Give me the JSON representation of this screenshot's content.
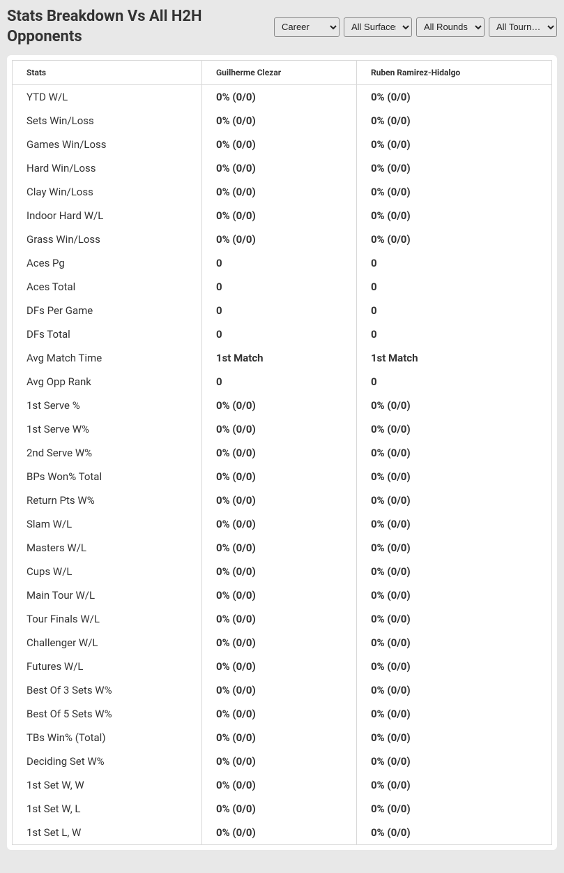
{
  "title": "Stats Breakdown Vs All H2H Opponents",
  "filters": {
    "career": "Career",
    "surfaces": "All Surfaces",
    "rounds": "All Rounds",
    "tourn": "All Tourn…"
  },
  "table": {
    "headers": {
      "stats": "Stats",
      "player1": "Guilherme Clezar",
      "player2": "Ruben Ramirez-Hidalgo"
    },
    "rows": [
      {
        "stat": "YTD W/L",
        "p1": "0% (0/0)",
        "p2": "0% (0/0)"
      },
      {
        "stat": "Sets Win/Loss",
        "p1": "0% (0/0)",
        "p2": "0% (0/0)"
      },
      {
        "stat": "Games Win/Loss",
        "p1": "0% (0/0)",
        "p2": "0% (0/0)"
      },
      {
        "stat": "Hard Win/Loss",
        "p1": "0% (0/0)",
        "p2": "0% (0/0)"
      },
      {
        "stat": "Clay Win/Loss",
        "p1": "0% (0/0)",
        "p2": "0% (0/0)"
      },
      {
        "stat": "Indoor Hard W/L",
        "p1": "0% (0/0)",
        "p2": "0% (0/0)"
      },
      {
        "stat": "Grass Win/Loss",
        "p1": "0% (0/0)",
        "p2": "0% (0/0)"
      },
      {
        "stat": "Aces Pg",
        "p1": "0",
        "p2": "0"
      },
      {
        "stat": "Aces Total",
        "p1": "0",
        "p2": "0"
      },
      {
        "stat": "DFs Per Game",
        "p1": "0",
        "p2": "0"
      },
      {
        "stat": "DFs Total",
        "p1": "0",
        "p2": "0"
      },
      {
        "stat": "Avg Match Time",
        "p1": "1st Match",
        "p2": "1st Match"
      },
      {
        "stat": "Avg Opp Rank",
        "p1": "0",
        "p2": "0"
      },
      {
        "stat": "1st Serve %",
        "p1": "0% (0/0)",
        "p2": "0% (0/0)"
      },
      {
        "stat": "1st Serve W%",
        "p1": "0% (0/0)",
        "p2": "0% (0/0)"
      },
      {
        "stat": "2nd Serve W%",
        "p1": "0% (0/0)",
        "p2": "0% (0/0)"
      },
      {
        "stat": "BPs Won% Total",
        "p1": "0% (0/0)",
        "p2": "0% (0/0)"
      },
      {
        "stat": "Return Pts W%",
        "p1": "0% (0/0)",
        "p2": "0% (0/0)"
      },
      {
        "stat": "Slam W/L",
        "p1": "0% (0/0)",
        "p2": "0% (0/0)"
      },
      {
        "stat": "Masters W/L",
        "p1": "0% (0/0)",
        "p2": "0% (0/0)"
      },
      {
        "stat": "Cups W/L",
        "p1": "0% (0/0)",
        "p2": "0% (0/0)"
      },
      {
        "stat": "Main Tour W/L",
        "p1": "0% (0/0)",
        "p2": "0% (0/0)"
      },
      {
        "stat": "Tour Finals W/L",
        "p1": "0% (0/0)",
        "p2": "0% (0/0)"
      },
      {
        "stat": "Challenger W/L",
        "p1": "0% (0/0)",
        "p2": "0% (0/0)"
      },
      {
        "stat": "Futures W/L",
        "p1": "0% (0/0)",
        "p2": "0% (0/0)"
      },
      {
        "stat": "Best Of 3 Sets W%",
        "p1": "0% (0/0)",
        "p2": "0% (0/0)"
      },
      {
        "stat": "Best Of 5 Sets W%",
        "p1": "0% (0/0)",
        "p2": "0% (0/0)"
      },
      {
        "stat": "TBs Win% (Total)",
        "p1": "0% (0/0)",
        "p2": "0% (0/0)"
      },
      {
        "stat": "Deciding Set W%",
        "p1": "0% (0/0)",
        "p2": "0% (0/0)"
      },
      {
        "stat": "1st Set W, W",
        "p1": "0% (0/0)",
        "p2": "0% (0/0)"
      },
      {
        "stat": "1st Set W, L",
        "p1": "0% (0/0)",
        "p2": "0% (0/0)"
      },
      {
        "stat": "1st Set L, W",
        "p1": "0% (0/0)",
        "p2": "0% (0/0)"
      }
    ]
  },
  "colors": {
    "page_bg": "#e8e8e8",
    "table_bg": "#ffffff",
    "border": "#d8d8d8",
    "text": "#333333"
  }
}
